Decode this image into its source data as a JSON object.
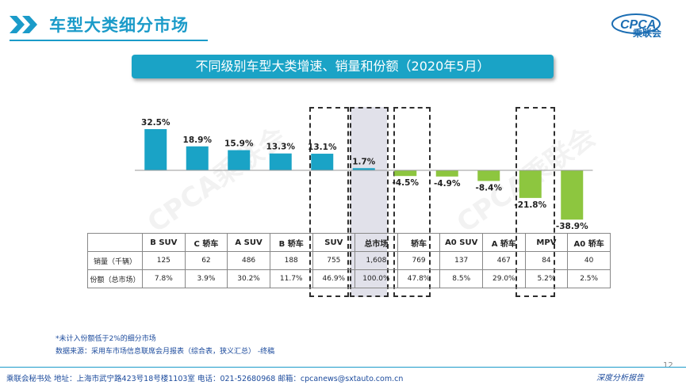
{
  "header": {
    "title": "车型大类细分市场",
    "logo_text": "CPCA",
    "logo_subtext": "乘联会"
  },
  "banner": {
    "text": "不同级别车型大类增速、销量和份额（2020年5月）"
  },
  "watermark": "CPCA乘联会",
  "chart_data": {
    "type": "bar",
    "categories": [
      "B SUV",
      "C 轿车",
      "A SUV",
      "B 轿车",
      "SUV",
      "总市场",
      "轿车",
      "A0 SUV",
      "A 轿车",
      "MPV",
      "A0 轿车"
    ],
    "values": [
      32.5,
      18.9,
      15.9,
      13.3,
      13.1,
      1.7,
      -4.5,
      -4.9,
      -8.4,
      -21.8,
      -38.9
    ],
    "value_labels": [
      "32.5%",
      "18.9%",
      "15.9%",
      "13.3%",
      "13.1%",
      "1.7%",
      "-4.5%",
      "-4.9%",
      "-8.4%",
      "-21.8%",
      "-38.9%"
    ],
    "unit": "%",
    "colors": {
      "positive": "#1aa3c6",
      "negative": "#8dc63f"
    },
    "highlighted": [
      "SUV",
      "总市场",
      "轿车",
      "MPV"
    ],
    "shaded": [
      "总市场"
    ]
  },
  "table": {
    "rows": [
      {
        "label": "",
        "cells": [
          "B SUV",
          "C 轿车",
          "A SUV",
          "B 轿车",
          "SUV",
          "总市场",
          "轿车",
          "A0 SUV",
          "A 轿车",
          "MPV",
          "A0 轿车"
        ]
      },
      {
        "label": "销量（千辆）",
        "cells": [
          "125",
          "62",
          "486",
          "188",
          "755",
          "1,608",
          "769",
          "137",
          "467",
          "84",
          "40"
        ]
      },
      {
        "label": "份额（总市场）",
        "cells": [
          "7.8%",
          "3.9%",
          "30.2%",
          "11.7%",
          "46.9%",
          "100.0%",
          "47.8%",
          "8.5%",
          "29.0%",
          "5.2%",
          "2.5%"
        ]
      }
    ]
  },
  "notes": {
    "line1": "*未计入份额低于2%的细分市场",
    "line2": "数据来源：采用车市场信息联席会月报表（综合表，狭义汇总）    -终稿"
  },
  "footer": {
    "text": "乘联会秘书处    地址：上海市武宁路423号18号楼1103室    电话：021-52680968    邮箱：cpcanews@sxtauto.com.cn",
    "right": "深度分析报告",
    "page": "12"
  }
}
